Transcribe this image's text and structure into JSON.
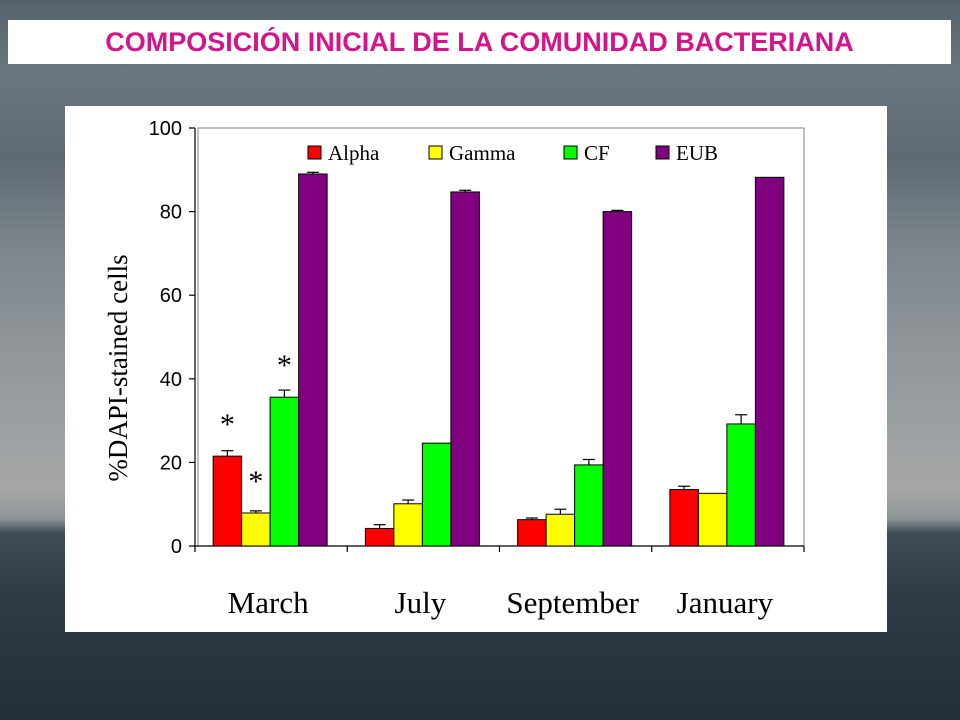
{
  "slide": {
    "title": "COMPOSICIÓN INICIAL DE LA COMUNIDAD BACTERIANA"
  },
  "chart_data": {
    "type": "bar",
    "title": "",
    "xlabel": "",
    "ylabel": "%DAPI-stained cells",
    "ylim": [
      0,
      100
    ],
    "yticks": [
      "0",
      "20",
      "40",
      "60",
      "80",
      "100"
    ],
    "categories": [
      "March",
      "July",
      "September",
      "January"
    ],
    "series": [
      {
        "name": "Alpha",
        "color": "#ff0000",
        "values": [
          21.5,
          4.2,
          6.3,
          13.5
        ],
        "errors": [
          1.3,
          0.9,
          0.4,
          0.8
        ]
      },
      {
        "name": "Gamma",
        "color": "#ffff00",
        "values": [
          7.9,
          10.1,
          7.6,
          12.6
        ],
        "errors": [
          0.5,
          0.9,
          1.2,
          0.0
        ]
      },
      {
        "name": "CF",
        "color": "#00ff00",
        "values": [
          35.6,
          24.6,
          19.4,
          29.2
        ],
        "errors": [
          1.7,
          0.0,
          1.3,
          2.2
        ]
      },
      {
        "name": "EUB",
        "color": "#800080",
        "values": [
          89.0,
          84.7,
          80.0,
          88.2
        ],
        "errors": [
          0.4,
          0.4,
          0.3,
          0.0
        ]
      }
    ],
    "annotations": [
      {
        "text": "*",
        "category": "March",
        "series": "Alpha"
      },
      {
        "text": "*",
        "category": "March",
        "series": "Gamma"
      },
      {
        "text": "*",
        "category": "March",
        "series": "CF"
      }
    ],
    "legend_position": "top",
    "grid": false
  }
}
